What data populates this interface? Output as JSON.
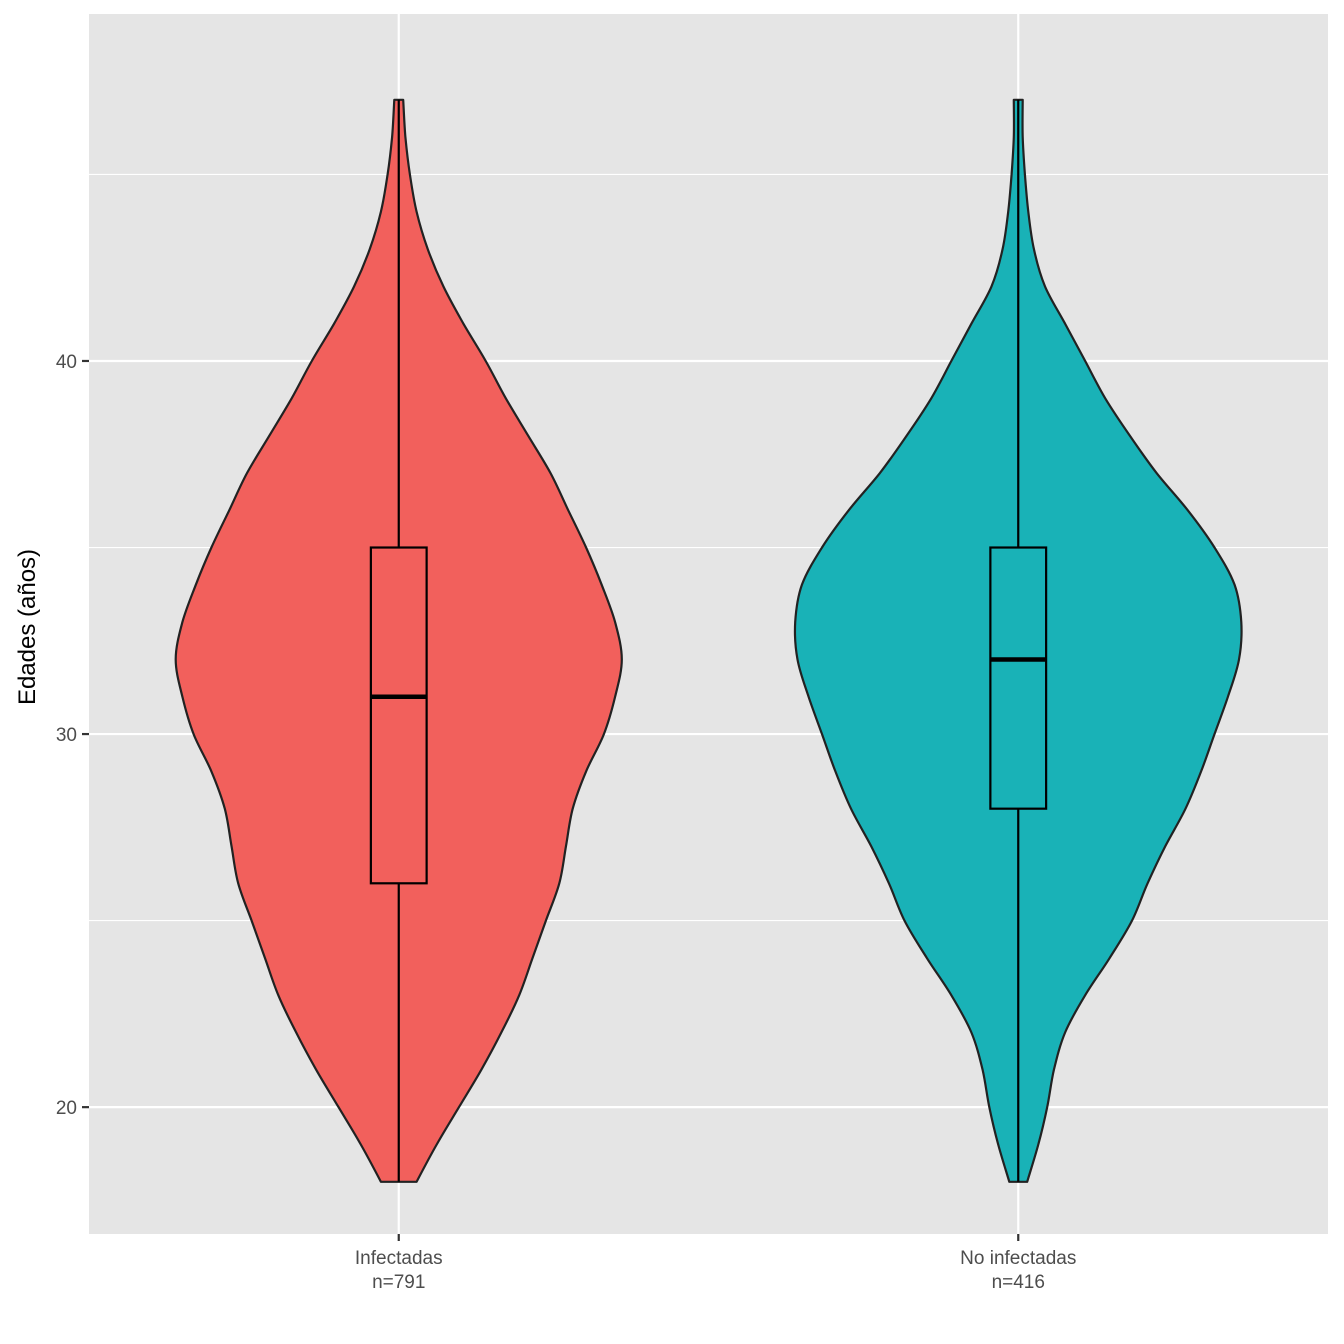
{
  "chart_data": {
    "type": "violin",
    "title": "",
    "xlabel": "",
    "ylabel": "Edades (años)",
    "ylim": [
      16.6,
      49.3
    ],
    "yticks": [
      20,
      30,
      40
    ],
    "grid": true,
    "legend": "none",
    "colors": {
      "panel_background": "#e5e5e5",
      "grid": "#ffffff",
      "outline": "#222222"
    },
    "categories": [
      {
        "label": "Infectadas",
        "n_label": "n=791",
        "fill": "#f2605c",
        "min": 18,
        "q1": 26,
        "median": 31,
        "q3": 35,
        "max": 47,
        "density": [
          [
            18,
            0.08
          ],
          [
            19,
            0.17
          ],
          [
            20,
            0.27
          ],
          [
            21,
            0.37
          ],
          [
            22,
            0.46
          ],
          [
            23,
            0.54
          ],
          [
            24,
            0.6
          ],
          [
            25,
            0.66
          ],
          [
            26,
            0.72
          ],
          [
            27,
            0.75
          ],
          [
            28,
            0.78
          ],
          [
            29,
            0.84
          ],
          [
            30,
            0.92
          ],
          [
            31,
            0.97
          ],
          [
            32,
            1.0
          ],
          [
            33,
            0.97
          ],
          [
            34,
            0.91
          ],
          [
            35,
            0.84
          ],
          [
            36,
            0.76
          ],
          [
            37,
            0.68
          ],
          [
            38,
            0.58
          ],
          [
            39,
            0.48
          ],
          [
            40,
            0.39
          ],
          [
            41,
            0.29
          ],
          [
            42,
            0.2
          ],
          [
            43,
            0.13
          ],
          [
            44,
            0.08
          ],
          [
            45,
            0.05
          ],
          [
            46,
            0.03
          ],
          [
            47,
            0.02
          ]
        ]
      },
      {
        "label": "No infectadas",
        "n_label": "n=416",
        "fill": "#19b2b7",
        "min": 18,
        "q1": 28,
        "median": 32,
        "q3": 35,
        "max": 47,
        "density": [
          [
            18,
            0.04
          ],
          [
            19,
            0.09
          ],
          [
            20,
            0.13
          ],
          [
            21,
            0.16
          ],
          [
            22,
            0.21
          ],
          [
            23,
            0.3
          ],
          [
            24,
            0.41
          ],
          [
            25,
            0.51
          ],
          [
            26,
            0.58
          ],
          [
            27,
            0.66
          ],
          [
            28,
            0.75
          ],
          [
            29,
            0.82
          ],
          [
            30,
            0.88
          ],
          [
            31,
            0.94
          ],
          [
            32,
            0.99
          ],
          [
            33,
            1.0
          ],
          [
            34,
            0.97
          ],
          [
            35,
            0.88
          ],
          [
            36,
            0.76
          ],
          [
            37,
            0.62
          ],
          [
            38,
            0.5
          ],
          [
            39,
            0.39
          ],
          [
            40,
            0.3
          ],
          [
            41,
            0.21
          ],
          [
            42,
            0.12
          ],
          [
            43,
            0.07
          ],
          [
            44,
            0.045
          ],
          [
            45,
            0.03
          ],
          [
            46,
            0.02
          ],
          [
            47,
            0.02
          ]
        ]
      }
    ]
  }
}
